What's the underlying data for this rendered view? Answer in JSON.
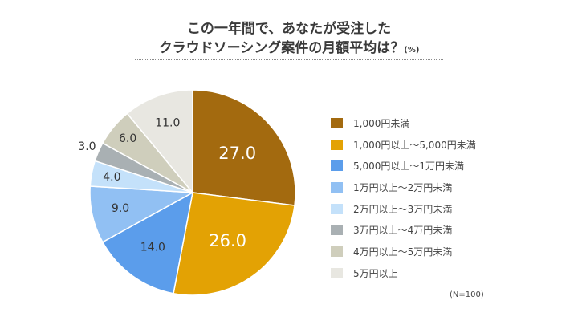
{
  "title": {
    "line1": "この一年間で、あなたが受注した",
    "line2": "クラウドソーシング案件の月額平均は？",
    "unit": "(%)"
  },
  "note": "(N=100)",
  "chart_data": {
    "type": "pie",
    "start_angle_deg": 0,
    "direction": "clockwise",
    "categories": [
      "1,000円未満",
      "1,000円以上〜5,000円未満",
      "5,000円以上〜1万円未満",
      "1万円以上〜2万円未満",
      "2万円以上〜3万円未満",
      "3万円以上〜4万円未満",
      "4万円以上〜5万円未満",
      "5万円以上"
    ],
    "values": [
      27.0,
      26.0,
      14.0,
      9.0,
      4.0,
      3.0,
      6.0,
      11.0
    ],
    "value_labels": [
      "27.0",
      "26.0",
      "14.0",
      "9.0",
      "4.0",
      "3.0",
      "6.0",
      "11.0"
    ],
    "colors": [
      "#A36A0F",
      "#E3A204",
      "#5B9DEB",
      "#91C0F3",
      "#C4E1FA",
      "#A9B0B3",
      "#CFCEBC",
      "#E8E7E1"
    ],
    "label_colors": [
      "#FFFFFF",
      "#FFFFFF",
      "#333333",
      "#333333",
      "#333333",
      "#333333",
      "#333333",
      "#333333"
    ],
    "legend_position": "right"
  }
}
